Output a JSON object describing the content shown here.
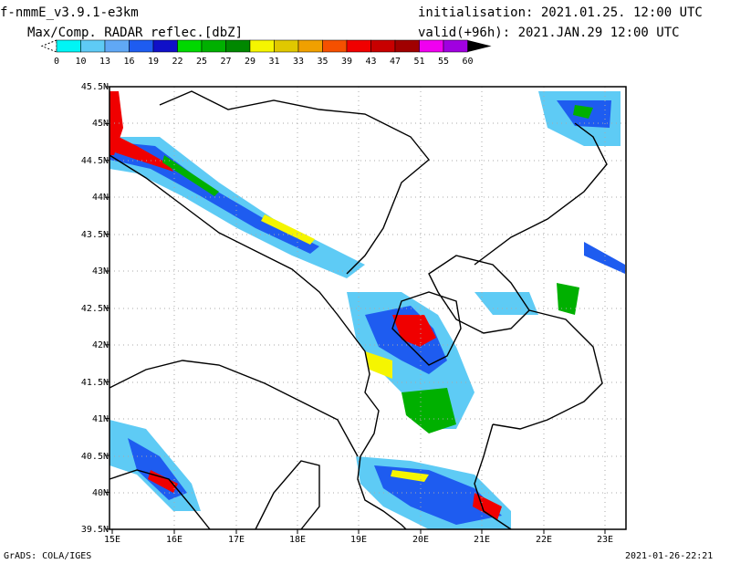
{
  "header": {
    "model": "f-nmmE_v3.9.1-e3km",
    "product": "Max/Comp. RADAR reflec.[dbZ]",
    "init": "initialisation: 2021.01.25. 12:00 UTC",
    "valid": "valid(+96h): 2021.JAN.29 12:00 UTC"
  },
  "colorbar": {
    "labels": [
      "0",
      "10",
      "13",
      "16",
      "19",
      "22",
      "25",
      "27",
      "29",
      "31",
      "33",
      "35",
      "39",
      "43",
      "47",
      "51",
      "55",
      "60"
    ],
    "colors": [
      "#00f5f5",
      "#5ecbf5",
      "#60a8f5",
      "#1e5cf0",
      "#1010c8",
      "#00d800",
      "#00b000",
      "#008800",
      "#f5f500",
      "#e0c800",
      "#f0a000",
      "#f55000",
      "#f00000",
      "#c80000",
      "#a00000",
      "#f000f0",
      "#a000e0",
      "#000000"
    ]
  },
  "map": {
    "lat_labels": [
      "45.5N",
      "45N",
      "44.5N",
      "44N",
      "43.5N",
      "43N",
      "42.5N",
      "42N",
      "41.5N",
      "41N",
      "40.5N",
      "40N",
      "39.5N"
    ],
    "lon_labels": [
      "15E",
      "16E",
      "17E",
      "18E",
      "19E",
      "20E",
      "21E",
      "22E",
      "23E"
    ]
  },
  "footer": {
    "left": "GrADS: COLA/IGES",
    "right": "2021-01-26-22:21"
  }
}
